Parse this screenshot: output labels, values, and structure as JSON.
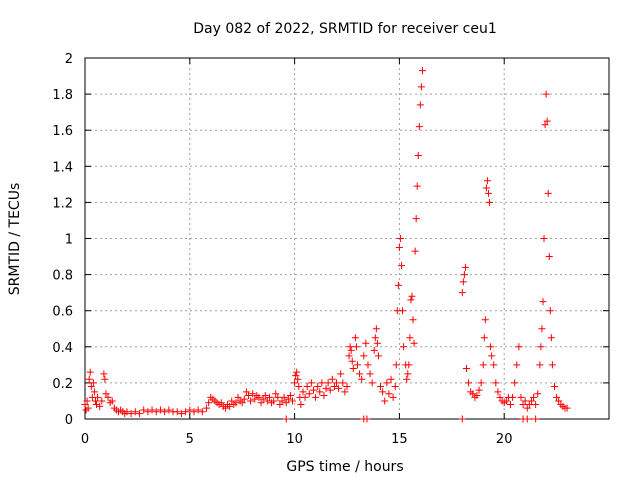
{
  "chart_data": {
    "type": "scatter",
    "title": "Day 082 of 2022, SRMTID for receiver ceu1",
    "xlabel": "GPS time / hours",
    "ylabel": "SRMTID / TECUs",
    "xlim": [
      0,
      25
    ],
    "ylim": [
      0,
      2
    ],
    "grid": true,
    "x_ticks": [
      0,
      5,
      10,
      15,
      20
    ],
    "y_ticks": [
      0,
      0.2,
      0.4,
      0.6,
      0.8,
      1,
      1.2,
      1.4,
      1.6,
      1.8,
      2
    ],
    "x_tick_labels": [
      "0",
      "5",
      "10",
      "15",
      "20"
    ],
    "y_tick_labels": [
      "0",
      "0.2",
      "0.4",
      "0.6",
      "0.8",
      "1",
      "1.2",
      "1.4",
      "1.6",
      "1.8",
      "2"
    ],
    "marker": "+",
    "marker_color": "#ff0000",
    "series": [
      {
        "points": [
          [
            0.0,
            0.08
          ],
          [
            0.05,
            0.05
          ],
          [
            0.1,
            0.1
          ],
          [
            0.15,
            0.06
          ],
          [
            0.2,
            0.22
          ],
          [
            0.25,
            0.26
          ],
          [
            0.3,
            0.18
          ],
          [
            0.35,
            0.12
          ],
          [
            0.4,
            0.2
          ],
          [
            0.45,
            0.15
          ],
          [
            0.5,
            0.1
          ],
          [
            0.55,
            0.08
          ],
          [
            0.6,
            0.12
          ],
          [
            0.7,
            0.07
          ],
          [
            0.8,
            0.1
          ],
          [
            0.9,
            0.25
          ],
          [
            0.95,
            0.22
          ],
          [
            1.0,
            0.14
          ],
          [
            1.1,
            0.12
          ],
          [
            1.2,
            0.09
          ],
          [
            1.3,
            0.1
          ],
          [
            1.4,
            0.06
          ],
          [
            1.5,
            0.05
          ],
          [
            1.6,
            0.04
          ],
          [
            1.7,
            0.05
          ],
          [
            1.8,
            0.04
          ],
          [
            1.9,
            0.03
          ],
          [
            2.0,
            0.04
          ],
          [
            2.2,
            0.03
          ],
          [
            2.4,
            0.04
          ],
          [
            2.6,
            0.03
          ],
          [
            2.8,
            0.05
          ],
          [
            3.0,
            0.04
          ],
          [
            3.2,
            0.05
          ],
          [
            3.4,
            0.04
          ],
          [
            3.6,
            0.05
          ],
          [
            3.8,
            0.04
          ],
          [
            4.0,
            0.05
          ],
          [
            4.2,
            0.04
          ],
          [
            4.4,
            0.04
          ],
          [
            4.6,
            0.03
          ],
          [
            4.8,
            0.04
          ],
          [
            5.0,
            0.05
          ],
          [
            5.2,
            0.04
          ],
          [
            5.4,
            0.05
          ],
          [
            5.6,
            0.04
          ],
          [
            5.8,
            0.06
          ],
          [
            5.9,
            0.09
          ],
          [
            6.0,
            0.12
          ],
          [
            6.1,
            0.11
          ],
          [
            6.2,
            0.1
          ],
          [
            6.3,
            0.09
          ],
          [
            6.4,
            0.08
          ],
          [
            6.5,
            0.09
          ],
          [
            6.6,
            0.07
          ],
          [
            6.7,
            0.06
          ],
          [
            6.8,
            0.08
          ],
          [
            6.9,
            0.07
          ],
          [
            7.0,
            0.1
          ],
          [
            7.1,
            0.08
          ],
          [
            7.2,
            0.09
          ],
          [
            7.3,
            0.12
          ],
          [
            7.4,
            0.1
          ],
          [
            7.5,
            0.09
          ],
          [
            7.6,
            0.11
          ],
          [
            7.7,
            0.15
          ],
          [
            7.8,
            0.13
          ],
          [
            7.9,
            0.1
          ],
          [
            8.0,
            0.14
          ],
          [
            8.1,
            0.11
          ],
          [
            8.2,
            0.13
          ],
          [
            8.3,
            0.12
          ],
          [
            8.4,
            0.09
          ],
          [
            8.5,
            0.11
          ],
          [
            8.6,
            0.13
          ],
          [
            8.7,
            0.1
          ],
          [
            8.8,
            0.12
          ],
          [
            8.9,
            0.09
          ],
          [
            9.0,
            0.1
          ],
          [
            9.1,
            0.14
          ],
          [
            9.2,
            0.12
          ],
          [
            9.3,
            0.08
          ],
          [
            9.4,
            0.1
          ],
          [
            9.5,
            0.12
          ],
          [
            9.6,
            0.09
          ],
          [
            9.7,
            0.11
          ],
          [
            9.8,
            0.13
          ],
          [
            9.9,
            0.1
          ],
          [
            10.0,
            0.2
          ],
          [
            10.05,
            0.24
          ],
          [
            10.1,
            0.26
          ],
          [
            10.15,
            0.22
          ],
          [
            10.2,
            0.18
          ],
          [
            10.25,
            0.12
          ],
          [
            10.3,
            0.08
          ],
          [
            10.4,
            0.15
          ],
          [
            10.5,
            0.12
          ],
          [
            10.6,
            0.18
          ],
          [
            10.7,
            0.14
          ],
          [
            10.8,
            0.2
          ],
          [
            10.9,
            0.16
          ],
          [
            11.0,
            0.12
          ],
          [
            11.1,
            0.18
          ],
          [
            11.2,
            0.15
          ],
          [
            11.3,
            0.2
          ],
          [
            11.4,
            0.13
          ],
          [
            11.5,
            0.17
          ],
          [
            11.6,
            0.2
          ],
          [
            11.7,
            0.16
          ],
          [
            11.8,
            0.22
          ],
          [
            11.9,
            0.18
          ],
          [
            12.0,
            0.2
          ],
          [
            12.1,
            0.17
          ],
          [
            12.2,
            0.25
          ],
          [
            12.3,
            0.2
          ],
          [
            12.4,
            0.15
          ],
          [
            12.5,
            0.18
          ],
          [
            12.6,
            0.35
          ],
          [
            12.65,
            0.4
          ],
          [
            12.7,
            0.38
          ],
          [
            12.75,
            0.32
          ],
          [
            12.8,
            0.28
          ],
          [
            12.9,
            0.45
          ],
          [
            12.95,
            0.4
          ],
          [
            13.0,
            0.3
          ],
          [
            13.1,
            0.25
          ],
          [
            13.2,
            0.22
          ],
          [
            13.3,
            0.35
          ],
          [
            13.4,
            0.42
          ],
          [
            13.5,
            0.3
          ],
          [
            13.6,
            0.25
          ],
          [
            13.7,
            0.2
          ],
          [
            13.8,
            0.38
          ],
          [
            13.85,
            0.45
          ],
          [
            13.9,
            0.5
          ],
          [
            13.95,
            0.42
          ],
          [
            14.0,
            0.35
          ],
          [
            14.1,
            0.18
          ],
          [
            14.2,
            0.15
          ],
          [
            14.3,
            0.1
          ],
          [
            14.4,
            0.2
          ],
          [
            14.5,
            0.14
          ],
          [
            14.6,
            0.22
          ],
          [
            14.7,
            0.12
          ],
          [
            14.8,
            0.18
          ],
          [
            14.85,
            0.3
          ],
          [
            14.9,
            0.6
          ],
          [
            14.95,
            0.74
          ],
          [
            15.0,
            0.95
          ],
          [
            15.05,
            1.0
          ],
          [
            15.1,
            0.85
          ],
          [
            15.15,
            0.6
          ],
          [
            15.2,
            0.4
          ],
          [
            15.3,
            0.3
          ],
          [
            15.35,
            0.22
          ],
          [
            15.4,
            0.25
          ],
          [
            15.45,
            0.3
          ],
          [
            15.5,
            0.45
          ],
          [
            15.55,
            0.66
          ],
          [
            15.6,
            0.68
          ],
          [
            15.65,
            0.55
          ],
          [
            15.7,
            0.42
          ],
          [
            15.75,
            0.93
          ],
          [
            15.8,
            1.11
          ],
          [
            15.85,
            1.29
          ],
          [
            15.9,
            1.46
          ],
          [
            15.95,
            1.62
          ],
          [
            16.0,
            1.74
          ],
          [
            16.05,
            1.84
          ],
          [
            16.1,
            1.93
          ],
          [
            18.0,
            0.7
          ],
          [
            18.05,
            0.76
          ],
          [
            18.1,
            0.8
          ],
          [
            18.15,
            0.84
          ],
          [
            18.2,
            0.28
          ],
          [
            18.3,
            0.2
          ],
          [
            18.4,
            0.15
          ],
          [
            18.5,
            0.14
          ],
          [
            18.6,
            0.12
          ],
          [
            18.7,
            0.13
          ],
          [
            18.8,
            0.16
          ],
          [
            18.9,
            0.2
          ],
          [
            19.0,
            0.3
          ],
          [
            19.05,
            0.45
          ],
          [
            19.1,
            0.55
          ],
          [
            19.15,
            1.28
          ],
          [
            19.2,
            1.32
          ],
          [
            19.25,
            1.25
          ],
          [
            19.3,
            1.2
          ],
          [
            19.35,
            0.4
          ],
          [
            19.4,
            0.35
          ],
          [
            19.5,
            0.3
          ],
          [
            19.6,
            0.2
          ],
          [
            19.7,
            0.15
          ],
          [
            19.8,
            0.12
          ],
          [
            19.9,
            0.1
          ],
          [
            20.0,
            0.09
          ],
          [
            20.1,
            0.1
          ],
          [
            20.2,
            0.12
          ],
          [
            20.3,
            0.08
          ],
          [
            20.4,
            0.12
          ],
          [
            20.5,
            0.2
          ],
          [
            20.6,
            0.3
          ],
          [
            20.7,
            0.4
          ],
          [
            20.8,
            0.12
          ],
          [
            20.9,
            0.08
          ],
          [
            21.0,
            0.1
          ],
          [
            21.1,
            0.06
          ],
          [
            21.2,
            0.08
          ],
          [
            21.3,
            0.1
          ],
          [
            21.4,
            0.12
          ],
          [
            21.5,
            0.08
          ],
          [
            21.6,
            0.14
          ],
          [
            21.7,
            0.3
          ],
          [
            21.75,
            0.4
          ],
          [
            21.8,
            0.5
          ],
          [
            21.85,
            0.65
          ],
          [
            21.9,
            1.0
          ],
          [
            21.95,
            1.63
          ],
          [
            22.0,
            1.8
          ],
          [
            22.05,
            1.65
          ],
          [
            22.1,
            1.25
          ],
          [
            22.15,
            0.9
          ],
          [
            22.2,
            0.6
          ],
          [
            22.25,
            0.45
          ],
          [
            22.3,
            0.3
          ],
          [
            22.4,
            0.18
          ],
          [
            22.5,
            0.12
          ],
          [
            22.6,
            0.1
          ],
          [
            22.7,
            0.08
          ],
          [
            22.8,
            0.07
          ],
          [
            22.9,
            0.06
          ],
          [
            23.0,
            0.06
          ]
        ]
      }
    ],
    "zero_points": [
      9.6,
      13.3,
      13.45,
      18.0,
      20.9,
      21.1,
      21.5
    ]
  }
}
